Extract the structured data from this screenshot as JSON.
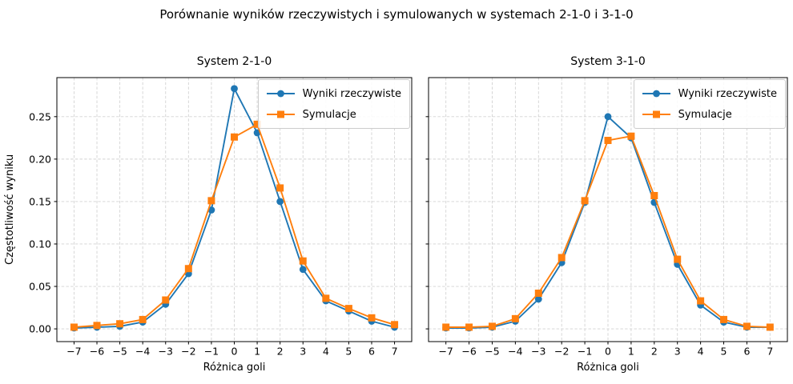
{
  "figure": {
    "title": "Porównanie wyników rzeczywistych i symulowanych w systemach 2-1-0 i 3-1-0"
  },
  "axes_labels": {
    "xlabel": "Różnica goli",
    "ylabel": "Częstotliwość wyniku"
  },
  "legend": {
    "entries": [
      {
        "label": "Wyniki rzeczywiste",
        "color": "#1f77b4",
        "marker": "circle"
      },
      {
        "label": "Symulacje",
        "color": "#ff7f0e",
        "marker": "square"
      }
    ]
  },
  "style": {
    "series_colors": [
      "#1f77b4",
      "#ff7f0e"
    ],
    "grid_color": "#d3d3d3",
    "spine_color": "#000000",
    "background": "#ffffff"
  },
  "chart_data": [
    {
      "type": "line",
      "title": "System 2-1-0",
      "xlabel": "Różnica goli",
      "ylabel": "Częstotliwość wyniku",
      "x": [
        -7,
        -6,
        -5,
        -4,
        -3,
        -2,
        -1,
        0,
        1,
        2,
        3,
        4,
        5,
        6,
        7
      ],
      "xticks": [
        -7,
        -6,
        -5,
        -4,
        -3,
        -2,
        -1,
        0,
        1,
        2,
        3,
        4,
        5,
        6,
        7
      ],
      "yticks": [
        0.0,
        0.05,
        0.1,
        0.15,
        0.2,
        0.25
      ],
      "xlim": [
        -7.75,
        7.75
      ],
      "ylim": [
        -0.015,
        0.296
      ],
      "grid": true,
      "legend_position": "upper right",
      "y_tick_labels_visible": true,
      "series": [
        {
          "name": "Wyniki rzeczywiste",
          "color": "#1f77b4",
          "marker": "circle",
          "values": [
            0.001,
            0.002,
            0.003,
            0.008,
            0.029,
            0.065,
            0.14,
            0.283,
            0.231,
            0.15,
            0.07,
            0.033,
            0.021,
            0.009,
            0.002
          ]
        },
        {
          "name": "Symulacje",
          "color": "#ff7f0e",
          "marker": "square",
          "values": [
            0.002,
            0.004,
            0.006,
            0.011,
            0.034,
            0.071,
            0.151,
            0.226,
            0.241,
            0.166,
            0.08,
            0.036,
            0.024,
            0.013,
            0.005
          ]
        }
      ]
    },
    {
      "type": "line",
      "title": "System 3-1-0",
      "xlabel": "Różnica goli",
      "ylabel": "Częstotliwość wyniku",
      "x": [
        -7,
        -6,
        -5,
        -4,
        -3,
        -2,
        -1,
        0,
        1,
        2,
        3,
        4,
        5,
        6,
        7
      ],
      "xticks": [
        -7,
        -6,
        -5,
        -4,
        -3,
        -2,
        -1,
        0,
        1,
        2,
        3,
        4,
        5,
        6,
        7
      ],
      "yticks": [
        0.0,
        0.05,
        0.1,
        0.15,
        0.2,
        0.25
      ],
      "xlim": [
        -7.75,
        7.75
      ],
      "ylim": [
        -0.015,
        0.296
      ],
      "grid": true,
      "legend_position": "upper right",
      "y_tick_labels_visible": false,
      "series": [
        {
          "name": "Wyniki rzeczywiste",
          "color": "#1f77b4",
          "marker": "circle",
          "values": [
            0.001,
            0.001,
            0.002,
            0.009,
            0.035,
            0.078,
            0.149,
            0.25,
            0.225,
            0.149,
            0.076,
            0.028,
            0.008,
            0.002,
            0.002
          ]
        },
        {
          "name": "Symulacje",
          "color": "#ff7f0e",
          "marker": "square",
          "values": [
            0.002,
            0.002,
            0.003,
            0.012,
            0.042,
            0.084,
            0.151,
            0.222,
            0.227,
            0.157,
            0.082,
            0.033,
            0.011,
            0.003,
            0.002
          ]
        }
      ]
    }
  ]
}
